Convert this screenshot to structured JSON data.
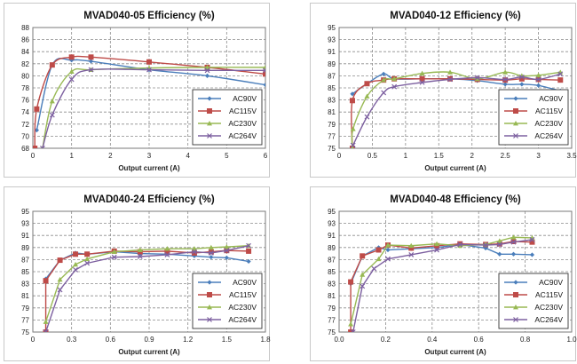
{
  "series_names": [
    "AC90V",
    "AC115V",
    "AC230V",
    "AC264V"
  ],
  "series_colors": [
    "#4a7ebb",
    "#be4b48",
    "#98b954",
    "#7d60a0"
  ],
  "chart_data": [
    {
      "type": "line",
      "title": "MVAD040-05 Efficiency (%)",
      "xlabel": "Output current (A)",
      "ylabel": "",
      "xlim": [
        0,
        6
      ],
      "xticks": [
        0,
        1,
        2,
        3,
        4,
        5,
        6
      ],
      "xtick_labels": [
        "0",
        "1",
        "2",
        "3",
        "4",
        "5",
        "6"
      ],
      "ylim": [
        68,
        88
      ],
      "yticks": [
        68,
        70,
        72,
        74,
        76,
        78,
        80,
        82,
        84,
        86,
        88
      ],
      "smooth": true,
      "grid": true,
      "legend": "bottom-right",
      "series": [
        {
          "name": "AC90V",
          "x": [
            0.1,
            0.5,
            1,
            1.5,
            3,
            4.5,
            6
          ],
          "y": [
            71.0,
            81.8,
            82.6,
            82.4,
            81.0,
            80.0,
            78.5
          ]
        },
        {
          "name": "AC115V",
          "x": [
            0.05,
            0.1,
            0.5,
            1,
            1.5,
            3,
            4.5,
            6
          ],
          "y": [
            68.0,
            74.5,
            81.8,
            83.1,
            83.1,
            82.3,
            81.4,
            80.3
          ]
        },
        {
          "name": "AC230V",
          "x": [
            0.25,
            0.5,
            1,
            1.5,
            3,
            4.5,
            6
          ],
          "y": [
            68.0,
            75.8,
            80.7,
            81.0,
            81.3,
            81.4,
            81.4
          ]
        },
        {
          "name": "AC264V",
          "x": [
            0.25,
            0.5,
            1,
            1.5,
            3,
            4.5,
            6
          ],
          "y": [
            68.0,
            73.5,
            79.4,
            81.0,
            81.0,
            80.9,
            80.9
          ]
        }
      ]
    },
    {
      "type": "line",
      "title": "MVAD040-12 Efficiency (%)",
      "xlabel": "Output current (A)",
      "ylabel": "",
      "xlim": [
        0,
        3.5
      ],
      "xticks": [
        0,
        0.5,
        1,
        1.5,
        2,
        2.5,
        3,
        3.5
      ],
      "xtick_labels": [
        "0",
        "0.5",
        "1",
        "1.5",
        "2",
        "2.5",
        "3",
        "3.5"
      ],
      "ylim": [
        75,
        95
      ],
      "yticks": [
        75,
        77,
        79,
        81,
        83,
        85,
        87,
        89,
        91,
        93,
        95
      ],
      "smooth": true,
      "grid": true,
      "legend": "bottom-right",
      "series": [
        {
          "name": "AC90V",
          "x": [
            0.2,
            0.42,
            0.67,
            0.83,
            1.25,
            1.67,
            2.08,
            2.5,
            2.75,
            3.0,
            3.33
          ],
          "y": [
            84.0,
            85.7,
            87.3,
            86.5,
            86.5,
            86.5,
            86.2,
            85.6,
            85.6,
            85.4,
            84.5
          ]
        },
        {
          "name": "AC115V",
          "x": [
            0.2,
            0.2,
            0.42,
            0.67,
            0.83,
            1.25,
            1.67,
            2.08,
            2.5,
            2.75,
            3.0,
            3.33
          ],
          "y": [
            75.0,
            82.9,
            85.7,
            86.3,
            86.5,
            86.5,
            86.5,
            86.4,
            86.3,
            86.5,
            86.4,
            86.3
          ]
        },
        {
          "name": "AC230V",
          "x": [
            0.2,
            0.21,
            0.42,
            0.67,
            0.83,
            1.25,
            1.67,
            2.08,
            2.5,
            2.75,
            3.0,
            3.33
          ],
          "y": [
            75.0,
            78.2,
            83.6,
            86.3,
            86.5,
            87.4,
            87.6,
            86.5,
            87.6,
            87.0,
            87.1,
            87.6
          ]
        },
        {
          "name": "AC264V",
          "x": [
            0.21,
            0.42,
            0.67,
            0.83,
            1.25,
            1.67,
            2.08,
            2.5,
            2.75,
            3.0,
            3.33
          ],
          "y": [
            75.5,
            80.2,
            84.2,
            85.2,
            85.9,
            86.4,
            86.7,
            86.4,
            86.8,
            86.4,
            87.3
          ]
        }
      ]
    },
    {
      "type": "line",
      "title": "MVAD040-24 Efficiency (%)",
      "xlabel": "Output current (A)",
      "ylabel": "",
      "xlim": [
        0,
        1.8
      ],
      "xticks": [
        0,
        0.3,
        0.6,
        0.9,
        1.2,
        1.5,
        1.8
      ],
      "xtick_labels": [
        "0",
        "0.3",
        "0.6",
        "0.9",
        "1.2",
        "1.5",
        "1.8"
      ],
      "ylim": [
        75,
        95
      ],
      "yticks": [
        75,
        77,
        79,
        81,
        83,
        85,
        87,
        89,
        91,
        93,
        95
      ],
      "smooth": false,
      "grid": true,
      "legend": "bottom-right",
      "series": [
        {
          "name": "AC90V",
          "x": [
            0.1,
            0.21,
            0.33,
            0.42,
            0.63,
            0.83,
            1.04,
            1.25,
            1.38,
            1.5,
            1.67
          ],
          "y": [
            83.8,
            86.9,
            88.1,
            87.9,
            88.3,
            88.0,
            87.9,
            87.6,
            87.4,
            87.3,
            86.7
          ]
        },
        {
          "name": "AC115V",
          "x": [
            0.1,
            0.1,
            0.21,
            0.33,
            0.42,
            0.63,
            0.83,
            1.04,
            1.25,
            1.38,
            1.5,
            1.67
          ],
          "y": [
            75.0,
            83.5,
            86.9,
            87.9,
            87.9,
            88.4,
            88.3,
            88.4,
            88.1,
            88.3,
            88.5,
            88.4
          ]
        },
        {
          "name": "AC230V",
          "x": [
            0.1,
            0.21,
            0.33,
            0.42,
            0.63,
            0.83,
            1.04,
            1.25,
            1.38,
            1.5,
            1.67
          ],
          "y": [
            76.7,
            83.7,
            86.2,
            87.1,
            88.3,
            88.6,
            88.8,
            88.8,
            89.0,
            89.1,
            89.3
          ]
        },
        {
          "name": "AC264V",
          "x": [
            0.1,
            0.21,
            0.33,
            0.42,
            0.63,
            0.83,
            1.04,
            1.25,
            1.38,
            1.5,
            1.67
          ],
          "y": [
            75.0,
            82.0,
            85.3,
            86.4,
            87.4,
            87.5,
            87.8,
            88.3,
            88.1,
            88.5,
            89.3
          ]
        }
      ]
    },
    {
      "type": "line",
      "title": "MVAD040-48 Efficiency (%)",
      "xlabel": "Output current (A)",
      "ylabel": "",
      "xlim": [
        0,
        1.0
      ],
      "xticks": [
        0,
        0.2,
        0.4,
        0.6,
        0.8,
        1.0
      ],
      "xtick_labels": [
        "0.0",
        "0.2",
        "0.4",
        "0.6",
        "0.8",
        "1.0"
      ],
      "ylim": [
        75,
        95
      ],
      "yticks": [
        75,
        77,
        79,
        81,
        83,
        85,
        87,
        89,
        91,
        93,
        95
      ],
      "smooth": false,
      "grid": true,
      "legend": "bottom-right",
      "series": [
        {
          "name": "AC90V",
          "x": [
            0.05,
            0.1,
            0.17,
            0.21,
            0.31,
            0.42,
            0.52,
            0.63,
            0.69,
            0.75,
            0.83
          ],
          "y": [
            83.0,
            87.6,
            89.0,
            88.6,
            88.8,
            89.0,
            89.5,
            88.9,
            87.9,
            87.9,
            87.8
          ]
        },
        {
          "name": "AC115V",
          "x": [
            0.05,
            0.05,
            0.1,
            0.17,
            0.21,
            0.31,
            0.42,
            0.52,
            0.63,
            0.69,
            0.75,
            0.83
          ],
          "y": [
            75.0,
            83.3,
            87.6,
            88.6,
            89.4,
            88.9,
            89.3,
            89.6,
            89.5,
            89.6,
            90.0,
            89.9
          ]
        },
        {
          "name": "AC230V",
          "x": [
            0.05,
            0.1,
            0.17,
            0.21,
            0.31,
            0.42,
            0.52,
            0.63,
            0.69,
            0.75,
            0.83
          ],
          "y": [
            76.3,
            84.5,
            87.1,
            89.4,
            89.3,
            89.6,
            89.3,
            89.5,
            90.1,
            90.7,
            90.6
          ]
        },
        {
          "name": "AC264V",
          "x": [
            0.06,
            0.1,
            0.15,
            0.21,
            0.31,
            0.42,
            0.52,
            0.63,
            0.69,
            0.75,
            0.83
          ],
          "y": [
            75.0,
            82.6,
            85.5,
            87.1,
            87.8,
            88.6,
            89.5,
            89.4,
            89.5,
            89.9,
            90.3
          ]
        }
      ]
    }
  ]
}
